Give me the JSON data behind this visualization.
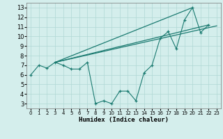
{
  "xlabel": "Humidex (Indice chaleur)",
  "background_color": "#d4eeec",
  "grid_color": "#b0d8d4",
  "line_color": "#1a7a70",
  "xlim": [
    -0.5,
    23.5
  ],
  "ylim": [
    2.5,
    13.5
  ],
  "xticks": [
    0,
    1,
    2,
    3,
    4,
    5,
    6,
    7,
    8,
    9,
    10,
    11,
    12,
    13,
    14,
    15,
    16,
    17,
    18,
    19,
    20,
    21,
    22,
    23
  ],
  "yticks": [
    3,
    4,
    5,
    6,
    7,
    8,
    9,
    10,
    11,
    12,
    13
  ],
  "series1_x": [
    0,
    1,
    2,
    3,
    4,
    5,
    6,
    7,
    8,
    9,
    10,
    11,
    12,
    13,
    14,
    15,
    16,
    17,
    18,
    19,
    20,
    21,
    22
  ],
  "series1_y": [
    6.0,
    7.0,
    6.7,
    7.3,
    7.0,
    6.6,
    6.6,
    7.3,
    3.0,
    3.3,
    3.0,
    4.3,
    4.3,
    3.3,
    6.2,
    7.0,
    9.8,
    10.5,
    8.7,
    11.7,
    13.0,
    10.4,
    11.2
  ],
  "series2_x": [
    3,
    22
  ],
  "series2_y": [
    7.3,
    11.2
  ],
  "series3_x": [
    3,
    20
  ],
  "series3_y": [
    7.3,
    13.0
  ],
  "series4_x": [
    3,
    23
  ],
  "series4_y": [
    7.3,
    11.1
  ]
}
